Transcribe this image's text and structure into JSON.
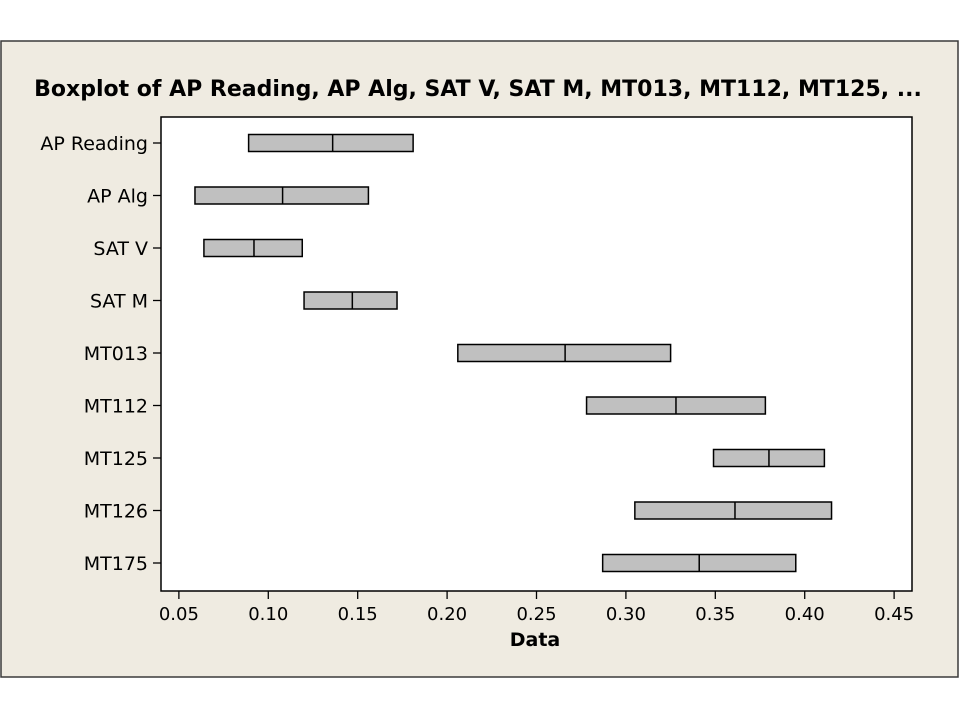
{
  "chart_data": {
    "type": "boxplot",
    "title": "Boxplot of AP Reading, AP Alg, SAT V, SAT M, MT013, MT112, MT125, ...",
    "xlabel": "Data",
    "ylabel": "",
    "xlim": [
      0.04,
      0.46
    ],
    "xticks": [
      0.05,
      0.1,
      0.15,
      0.2,
      0.25,
      0.3,
      0.35,
      0.4,
      0.45
    ],
    "xtick_labels": [
      "0.05",
      "0.10",
      "0.15",
      "0.20",
      "0.25",
      "0.30",
      "0.35",
      "0.40",
      "0.45"
    ],
    "grid": false,
    "series": [
      {
        "name": "AP Reading",
        "q1": 0.089,
        "median": 0.136,
        "q3": 0.181
      },
      {
        "name": "AP Alg",
        "q1": 0.059,
        "median": 0.108,
        "q3": 0.156
      },
      {
        "name": "SAT V",
        "q1": 0.064,
        "median": 0.092,
        "q3": 0.119
      },
      {
        "name": "SAT M",
        "q1": 0.12,
        "median": 0.147,
        "q3": 0.172
      },
      {
        "name": "MT013",
        "q1": 0.206,
        "median": 0.266,
        "q3": 0.325
      },
      {
        "name": "MT112",
        "q1": 0.278,
        "median": 0.328,
        "q3": 0.378
      },
      {
        "name": "MT125",
        "q1": 0.349,
        "median": 0.38,
        "q3": 0.411
      },
      {
        "name": "MT126",
        "q1": 0.305,
        "median": 0.361,
        "q3": 0.415
      },
      {
        "name": "MT175",
        "q1": 0.287,
        "median": 0.341,
        "q3": 0.395
      }
    ]
  },
  "colors": {
    "panel": "#efebe1",
    "box_fill": "#c0c0c0",
    "outline": "#000000"
  }
}
